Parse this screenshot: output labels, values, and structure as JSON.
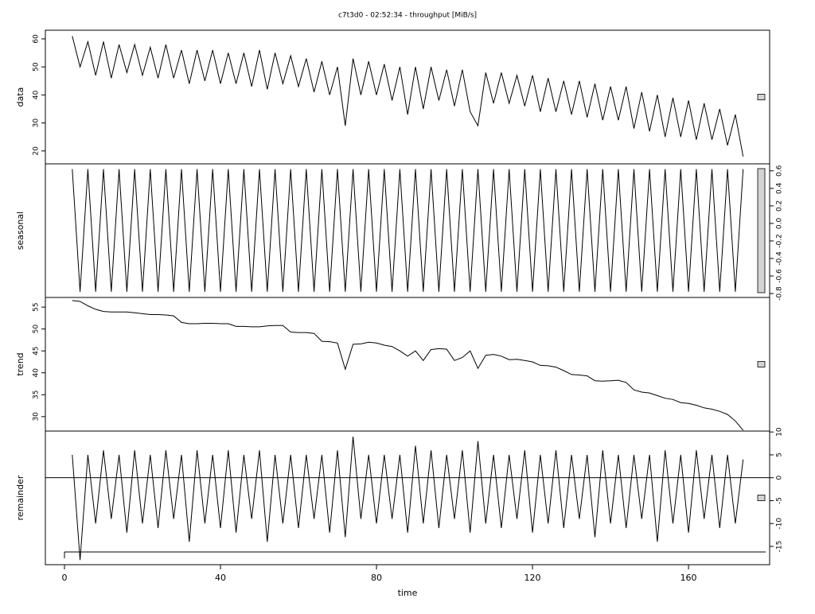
{
  "chart_data": {
    "type": "line",
    "title": "c7t3d0 - 02:52:34 - throughput [MiB/s]",
    "xlabel": "time",
    "xlim": [
      -4.9,
      180.8
    ],
    "xticks": [
      0,
      40,
      80,
      120,
      160
    ],
    "color": "#000000",
    "x": [
      2,
      4,
      6,
      8,
      10,
      12,
      14,
      16,
      18,
      20,
      22,
      24,
      26,
      28,
      30,
      32,
      34,
      36,
      38,
      40,
      42,
      44,
      46,
      48,
      50,
      52,
      54,
      56,
      58,
      60,
      62,
      64,
      66,
      68,
      70,
      72,
      74,
      76,
      78,
      80,
      82,
      84,
      86,
      88,
      90,
      92,
      94,
      96,
      98,
      100,
      102,
      104,
      106,
      108,
      110,
      112,
      114,
      116,
      118,
      120,
      122,
      124,
      126,
      128,
      130,
      132,
      134,
      136,
      138,
      140,
      142,
      144,
      146,
      148,
      150,
      152,
      154,
      156,
      158,
      160,
      162,
      164,
      166,
      168,
      170,
      172,
      174
    ],
    "panels": [
      {
        "ylabel": "data",
        "axis_side": "left",
        "ylim": [
          15.4,
          63.1
        ],
        "yticks": [
          20,
          30,
          40,
          50,
          60
        ],
        "values": [
          61,
          50,
          59,
          47,
          59,
          46,
          58,
          48,
          58,
          47,
          57,
          46,
          58,
          46,
          56,
          44,
          56,
          45,
          56,
          44,
          55,
          44,
          55,
          43,
          56,
          42,
          55,
          44,
          54,
          43,
          53,
          41,
          52,
          40,
          50,
          29,
          53,
          40,
          52,
          40,
          51,
          38,
          50,
          33,
          50,
          35,
          50,
          38,
          49,
          36,
          49,
          34,
          29,
          48,
          37,
          48,
          37,
          47,
          36,
          47,
          34,
          46,
          34,
          45,
          33,
          45,
          32,
          44,
          31,
          43,
          31,
          43,
          28,
          41,
          27,
          40,
          25,
          39,
          25,
          38,
          24,
          37,
          24,
          35,
          22,
          33,
          18
        ]
      },
      {
        "ylabel": "seasonal",
        "axis_side": "right",
        "ylim": [
          -0.845,
          0.68
        ],
        "yticks": [
          -0.8,
          -0.6,
          -0.4,
          -0.2,
          {
            "value": 0,
            "label": "0.0"
          },
          0.2,
          0.4,
          0.6
        ],
        "values": [
          0.62,
          -0.78,
          0.62,
          -0.78,
          0.62,
          -0.78,
          0.62,
          -0.78,
          0.62,
          -0.78,
          0.62,
          -0.78,
          0.62,
          -0.78,
          0.62,
          -0.78,
          0.62,
          -0.78,
          0.62,
          -0.78,
          0.62,
          -0.78,
          0.62,
          -0.78,
          0.62,
          -0.78,
          0.62,
          -0.78,
          0.62,
          -0.78,
          0.62,
          -0.78,
          0.62,
          -0.78,
          0.62,
          -0.78,
          0.62,
          -0.78,
          0.62,
          -0.78,
          0.62,
          -0.78,
          0.62,
          -0.78,
          0.62,
          -0.78,
          0.62,
          -0.78,
          0.62,
          -0.78,
          0.62,
          -0.78,
          0.62,
          -0.78,
          0.62,
          -0.78,
          0.62,
          -0.78,
          0.62,
          -0.78,
          0.62,
          -0.78,
          0.62,
          -0.78,
          0.62,
          -0.78,
          0.62,
          -0.78,
          0.62,
          -0.78,
          0.62,
          -0.78,
          0.62,
          -0.78,
          0.62,
          -0.78,
          0.62,
          -0.78,
          0.62,
          -0.78,
          0.62,
          -0.78,
          0.62,
          -0.78,
          0.62,
          -0.78,
          0.62
        ]
      },
      {
        "ylabel": "trend",
        "axis_side": "left",
        "ylim": [
          26.7,
          57.2
        ],
        "yticks": [
          30,
          35,
          40,
          45,
          50,
          55
        ],
        "values": [
          56.5,
          56.3,
          55.3,
          54.5,
          54,
          53.9,
          53.9,
          53.9,
          53.7,
          53.5,
          53.3,
          53.3,
          53.2,
          53,
          51.5,
          51.2,
          51.2,
          51.3,
          51.3,
          51.2,
          51.2,
          50.6,
          50.6,
          50.5,
          50.5,
          50.7,
          50.8,
          50.8,
          49.3,
          49.2,
          49.2,
          49,
          47.2,
          47.1,
          46.8,
          40.8,
          46.5,
          46.6,
          47,
          46.8,
          46.3,
          46,
          45,
          43.8,
          45,
          42.8,
          45.3,
          45.5,
          45.4,
          42.8,
          43.5,
          45,
          41,
          44,
          44.2,
          43.8,
          43,
          43.1,
          42.8,
          42.5,
          41.7,
          41.6,
          41.3,
          40.5,
          39.6,
          39.5,
          39.3,
          38.2,
          38.1,
          38.2,
          38.3,
          37.8,
          36.1,
          35.6,
          35.4,
          34.8,
          34.2,
          33.9,
          33.2,
          33,
          32.6,
          32,
          31.7,
          31.2,
          30.5,
          29,
          26.9
        ]
      },
      {
        "ylabel": "remainder",
        "axis_side": "right",
        "ylim": [
          -19.0,
          10.2
        ],
        "yticks": [
          -15,
          -10,
          -5,
          0,
          5,
          10
        ],
        "values": [
          5,
          -18,
          5,
          -10,
          6,
          -9,
          5,
          -12,
          6,
          -10,
          5,
          -11,
          6,
          -9,
          5,
          -14,
          6,
          -10,
          5,
          -11,
          6,
          -12,
          5,
          -9,
          6,
          -14,
          5,
          -10,
          5,
          -11,
          5,
          -9,
          5,
          -12,
          6,
          -13,
          9,
          -9,
          5,
          -10,
          5,
          -9,
          5,
          -12,
          7,
          -10,
          6,
          -11,
          5,
          -9,
          6,
          -12,
          8,
          -10,
          5,
          -11,
          5,
          -9,
          6,
          -12,
          5,
          -10,
          6,
          -11,
          5,
          -9,
          5,
          -13,
          6,
          -10,
          5,
          -11,
          5,
          -9,
          5,
          -14,
          6,
          -10,
          5,
          -12,
          6,
          -9,
          5,
          -11,
          5,
          -10,
          4
        ]
      }
    ]
  }
}
